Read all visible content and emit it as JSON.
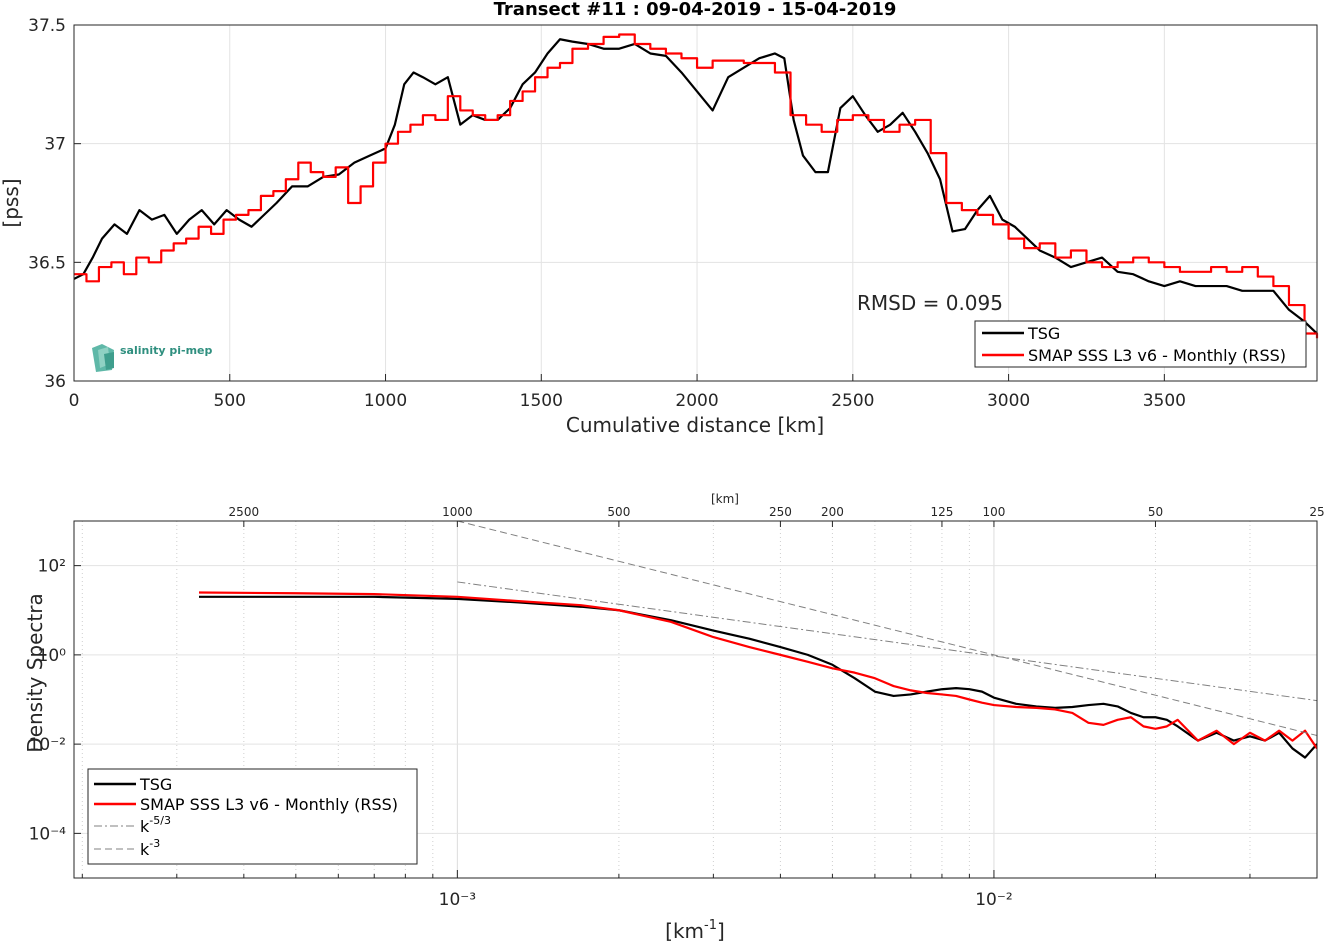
{
  "chart_data": [
    {
      "type": "line",
      "title": "Transect #11 : 09-04-2019 - 15-04-2019",
      "xlabel": "Cumulative distance [km]",
      "ylabel": "[pss]",
      "xlim": [
        0,
        3990
      ],
      "ylim": [
        36,
        37.5
      ],
      "xticks": [
        0,
        500,
        1000,
        1500,
        2000,
        2500,
        3000,
        3500
      ],
      "yticks": [
        36,
        36.5,
        37,
        37.5
      ],
      "xtick_labels": [
        "0",
        "500",
        "1000",
        "1500",
        "2000",
        "2500",
        "3000",
        "3500"
      ],
      "ytick_labels": [
        "36",
        "36.5",
        "37",
        "37.5"
      ],
      "grid": true,
      "legend_position": "bottom-right",
      "annotation": "RMSD = 0.095",
      "logo": "salinity pi-mep",
      "series": [
        {
          "name": "TSG",
          "color": "#000000",
          "x": [
            0,
            30,
            60,
            90,
            130,
            170,
            210,
            250,
            290,
            330,
            370,
            410,
            450,
            490,
            530,
            570,
            610,
            650,
            700,
            750,
            800,
            850,
            900,
            950,
            1000,
            1030,
            1060,
            1090,
            1120,
            1160,
            1200,
            1240,
            1280,
            1320,
            1360,
            1400,
            1440,
            1480,
            1520,
            1560,
            1600,
            1650,
            1700,
            1750,
            1800,
            1850,
            1900,
            1950,
            2000,
            2050,
            2100,
            2150,
            2200,
            2250,
            2280,
            2310,
            2340,
            2380,
            2420,
            2460,
            2500,
            2540,
            2580,
            2620,
            2660,
            2700,
            2740,
            2780,
            2820,
            2860,
            2900,
            2940,
            2980,
            3020,
            3060,
            3100,
            3150,
            3200,
            3250,
            3300,
            3350,
            3400,
            3450,
            3500,
            3550,
            3600,
            3650,
            3700,
            3750,
            3800,
            3850,
            3900,
            3950,
            3990
          ],
          "y": [
            36.43,
            36.45,
            36.52,
            36.6,
            36.66,
            36.62,
            36.72,
            36.68,
            36.7,
            36.62,
            36.68,
            36.72,
            36.66,
            36.72,
            36.68,
            36.65,
            36.7,
            36.75,
            36.82,
            36.82,
            36.86,
            36.87,
            36.92,
            36.95,
            36.98,
            37.08,
            37.25,
            37.3,
            37.28,
            37.25,
            37.28,
            37.08,
            37.12,
            37.1,
            37.1,
            37.15,
            37.25,
            37.3,
            37.38,
            37.44,
            37.43,
            37.42,
            37.4,
            37.4,
            37.42,
            37.38,
            37.37,
            37.3,
            37.22,
            37.14,
            37.28,
            37.32,
            37.36,
            37.38,
            37.36,
            37.1,
            36.95,
            36.88,
            36.88,
            37.15,
            37.2,
            37.12,
            37.05,
            37.08,
            37.13,
            37.05,
            36.96,
            36.85,
            36.63,
            36.64,
            36.72,
            36.78,
            36.68,
            36.65,
            36.6,
            36.55,
            36.52,
            36.48,
            36.5,
            36.52,
            36.46,
            36.45,
            36.42,
            36.4,
            36.42,
            36.4,
            36.4,
            36.4,
            36.38,
            36.38,
            36.38,
            36.3,
            36.25,
            36.2
          ]
        },
        {
          "name": "SMAP SSS L3 v6 - Monthly (RSS)",
          "color": "#ff0000",
          "x": [
            0,
            40,
            80,
            120,
            160,
            200,
            240,
            280,
            320,
            360,
            400,
            440,
            480,
            520,
            560,
            600,
            640,
            680,
            720,
            760,
            800,
            840,
            880,
            920,
            960,
            1000,
            1040,
            1080,
            1120,
            1160,
            1200,
            1240,
            1280,
            1320,
            1360,
            1400,
            1440,
            1480,
            1520,
            1560,
            1600,
            1650,
            1700,
            1750,
            1800,
            1850,
            1900,
            1950,
            2000,
            2050,
            2100,
            2150,
            2200,
            2250,
            2300,
            2350,
            2400,
            2450,
            2500,
            2550,
            2600,
            2650,
            2700,
            2750,
            2800,
            2850,
            2900,
            2950,
            3000,
            3050,
            3100,
            3150,
            3200,
            3250,
            3300,
            3350,
            3400,
            3450,
            3500,
            3550,
            3600,
            3650,
            3700,
            3750,
            3800,
            3850,
            3900,
            3950,
            3990
          ],
          "y": [
            36.45,
            36.42,
            36.48,
            36.5,
            36.45,
            36.52,
            36.5,
            36.55,
            36.58,
            36.6,
            36.65,
            36.62,
            36.68,
            36.7,
            36.72,
            36.78,
            36.8,
            36.85,
            36.92,
            36.88,
            36.86,
            36.9,
            36.75,
            36.82,
            36.92,
            37.0,
            37.05,
            37.08,
            37.12,
            37.1,
            37.2,
            37.14,
            37.12,
            37.1,
            37.12,
            37.18,
            37.22,
            37.28,
            37.32,
            37.34,
            37.4,
            37.42,
            37.45,
            37.46,
            37.42,
            37.4,
            37.38,
            37.36,
            37.32,
            37.35,
            37.35,
            37.34,
            37.34,
            37.3,
            37.12,
            37.08,
            37.05,
            37.1,
            37.12,
            37.1,
            37.05,
            37.08,
            37.1,
            36.96,
            36.75,
            36.72,
            36.7,
            36.66,
            36.6,
            36.56,
            36.58,
            36.52,
            36.55,
            36.5,
            36.48,
            36.5,
            36.52,
            36.5,
            36.48,
            36.46,
            36.46,
            36.48,
            36.46,
            36.48,
            36.44,
            36.4,
            36.32,
            36.2,
            36.18
          ]
        }
      ]
    },
    {
      "type": "line",
      "xlabel": "[km⁻¹]",
      "ylabel": "Density Spectra",
      "x_scale": "log",
      "y_scale": "log",
      "xlim": [
        0.000193,
        0.04
      ],
      "ylim": [
        1e-05,
        1000
      ],
      "xticks_major": [
        0.001,
        0.01
      ],
      "xtick_labels": [
        "10⁻³",
        "10⁻²"
      ],
      "yticks": [
        0.0001,
        0.01,
        1,
        100
      ],
      "ytick_labels": [
        "10⁻⁴",
        "10⁻²",
        "10⁰",
        "10²"
      ],
      "top_axis_label": "[km]",
      "top_axis_ticks": [
        2500,
        1000,
        500,
        250,
        200,
        125,
        100,
        50,
        25
      ],
      "top_axis_tick_labels": [
        "2500",
        "1000",
        "500",
        "250",
        "200",
        "125",
        "100",
        "50",
        "25"
      ],
      "grid": true,
      "legend_position": "bottom-left",
      "series": [
        {
          "name": "TSG",
          "color": "#000000",
          "style": "solid",
          "x": [
            0.00033,
            0.0005,
            0.0007,
            0.001,
            0.0013,
            0.0017,
            0.002,
            0.0025,
            0.003,
            0.0035,
            0.004,
            0.0045,
            0.005,
            0.0055,
            0.006,
            0.0065,
            0.007,
            0.0075,
            0.008,
            0.0085,
            0.009,
            0.0095,
            0.01,
            0.011,
            0.012,
            0.013,
            0.014,
            0.015,
            0.016,
            0.017,
            0.018,
            0.019,
            0.02,
            0.021,
            0.022,
            0.024,
            0.026,
            0.028,
            0.03,
            0.032,
            0.034,
            0.036,
            0.038,
            0.04
          ],
          "y": [
            20,
            20,
            20,
            18,
            15,
            12,
            10,
            6,
            3.5,
            2.3,
            1.5,
            1.0,
            0.6,
            0.3,
            0.15,
            0.12,
            0.13,
            0.15,
            0.17,
            0.18,
            0.17,
            0.15,
            0.11,
            0.08,
            0.07,
            0.065,
            0.068,
            0.075,
            0.08,
            0.07,
            0.05,
            0.04,
            0.04,
            0.035,
            0.025,
            0.012,
            0.018,
            0.012,
            0.015,
            0.012,
            0.018,
            0.008,
            0.005,
            0.01
          ]
        },
        {
          "name": "SMAP SSS L3 v6 - Monthly (RSS)",
          "color": "#ff0000",
          "style": "solid",
          "x": [
            0.00033,
            0.0005,
            0.0007,
            0.001,
            0.0013,
            0.0017,
            0.002,
            0.0025,
            0.003,
            0.0035,
            0.004,
            0.0045,
            0.005,
            0.0055,
            0.006,
            0.0065,
            0.007,
            0.0075,
            0.008,
            0.0085,
            0.009,
            0.0095,
            0.01,
            0.011,
            0.012,
            0.013,
            0.014,
            0.015,
            0.016,
            0.017,
            0.018,
            0.019,
            0.02,
            0.021,
            0.022,
            0.024,
            0.026,
            0.028,
            0.03,
            0.032,
            0.034,
            0.036,
            0.038,
            0.04
          ],
          "y": [
            25,
            24,
            23,
            20,
            16,
            13,
            10,
            5.5,
            2.5,
            1.5,
            1.0,
            0.7,
            0.5,
            0.4,
            0.3,
            0.2,
            0.16,
            0.14,
            0.13,
            0.12,
            0.1,
            0.085,
            0.075,
            0.068,
            0.065,
            0.06,
            0.05,
            0.03,
            0.027,
            0.035,
            0.04,
            0.025,
            0.022,
            0.025,
            0.035,
            0.012,
            0.02,
            0.01,
            0.018,
            0.012,
            0.02,
            0.012,
            0.02,
            0.008
          ]
        },
        {
          "name": "k⁻⁵ᐟ³",
          "label_base": "k",
          "label_sup": "-5/3",
          "color": "#808080",
          "style": "dashdot",
          "slope": -1.6667,
          "x": [
            0.001,
            0.04
          ],
          "y": [
            43.1,
            0.0944
          ]
        },
        {
          "name": "k⁻³",
          "label_base": "k",
          "label_sup": "-3",
          "color": "#808080",
          "style": "dashed",
          "slope": -3,
          "x": [
            0.001,
            0.04
          ],
          "y": [
            1000,
            0.0156
          ]
        }
      ]
    }
  ]
}
